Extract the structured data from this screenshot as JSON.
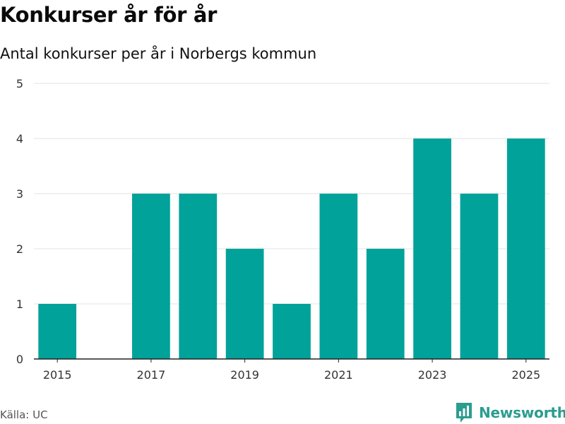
{
  "title": "Konkurser år för år",
  "subtitle": "Antal konkurser per år i Norbergs kommun",
  "source": "Källa: UC",
  "brand": {
    "name": "Newsworthy",
    "icon": "newsworthy-logo-icon"
  },
  "colors": {
    "bar": "#00a29a",
    "grid": "#e3e3e3",
    "axis": "#222222",
    "brand": "#2a9d8f"
  },
  "chart_data": {
    "type": "bar",
    "title": "Konkurser år för år",
    "subtitle": "Antal konkurser per år i Norbergs kommun",
    "categories": [
      "2015",
      "2016",
      "2017",
      "2018",
      "2019",
      "2020",
      "2021",
      "2022",
      "2023",
      "2024",
      "2025"
    ],
    "values": [
      1,
      0,
      3,
      3,
      2,
      1,
      3,
      2,
      4,
      3,
      4
    ],
    "x_tick_labels": [
      "2015",
      "2017",
      "2019",
      "2021",
      "2023",
      "2025"
    ],
    "y_ticks": [
      0,
      1,
      2,
      3,
      4,
      5
    ],
    "ylim": [
      0,
      5
    ],
    "xlabel": "",
    "ylabel": "",
    "grid": true
  }
}
